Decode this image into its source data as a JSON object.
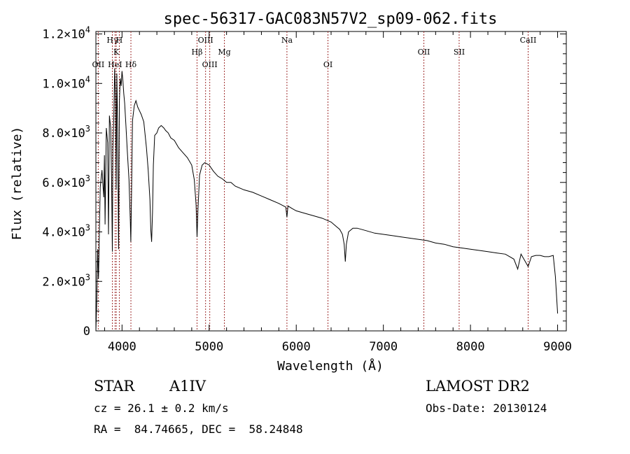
{
  "chart_data": {
    "type": "line",
    "title": "spec-56317-GAC083N57V2_sp09-062.fits",
    "xlabel": "Wavelength (Å)",
    "ylabel": "Flux (relative)",
    "xlim": [
      3700,
      9100
    ],
    "ylim": [
      0,
      12100
    ],
    "x_ticks": [
      4000,
      5000,
      6000,
      7000,
      8000,
      9000
    ],
    "x_tick_labels": [
      "4000",
      "5000",
      "6000",
      "7000",
      "8000",
      "9000"
    ],
    "y_ticks": [
      0,
      2000,
      4000,
      6000,
      8000,
      10000,
      12000
    ],
    "y_tick_labels": [
      {
        "mant": "0",
        "exp": ""
      },
      {
        "mant": "2.0×10",
        "exp": "3"
      },
      {
        "mant": "4.0×10",
        "exp": "3"
      },
      {
        "mant": "6.0×10",
        "exp": "3"
      },
      {
        "mant": "8.0×10",
        "exp": "3"
      },
      {
        "mant": "1.0×10",
        "exp": "4"
      },
      {
        "mant": "1.2×10",
        "exp": "4"
      }
    ],
    "grid": false,
    "line_color": "#000000",
    "marker_color": "#a03030",
    "series": [
      {
        "x": [
          3700,
          3710,
          3720,
          3730,
          3750,
          3770,
          3790,
          3798,
          3805,
          3820,
          3835,
          3845,
          3855,
          3870,
          3880,
          3889,
          3895,
          3905,
          3915,
          3925,
          3933,
          3940,
          3950,
          3960,
          3970,
          3980,
          3990,
          4000,
          4010,
          4020,
          4030,
          4045,
          4060,
          4080,
          4095,
          4101,
          4108,
          4120,
          4140,
          4160,
          4180,
          4200,
          4220,
          4250,
          4280,
          4300,
          4320,
          4330,
          4340,
          4350,
          4360,
          4375,
          4400,
          4420,
          4450,
          4480,
          4500,
          4530,
          4560,
          4600,
          4650,
          4700,
          4750,
          4800,
          4830,
          4850,
          4861,
          4872,
          4890,
          4920,
          4950,
          5000,
          5050,
          5100,
          5150,
          5200,
          5250,
          5300,
          5400,
          5500,
          5600,
          5700,
          5800,
          5880,
          5893,
          5905,
          5950,
          6000,
          6100,
          6200,
          6300,
          6400,
          6450,
          6500,
          6530,
          6550,
          6563,
          6575,
          6600,
          6650,
          6700,
          6800,
          6900,
          7000,
          7100,
          7200,
          7300,
          7400,
          7500,
          7600,
          7700,
          7800,
          7900,
          8000,
          8100,
          8200,
          8300,
          8400,
          8498,
          8542,
          8580,
          8662,
          8700,
          8750,
          8800,
          8850,
          8900,
          8950,
          8975,
          9000
        ],
        "y": [
          0,
          1200,
          3300,
          2100,
          5800,
          6500,
          5400,
          7100,
          4300,
          8200,
          7600,
          3900,
          8700,
          8200,
          6100,
          3200,
          7400,
          8500,
          10600,
          9400,
          5700,
          10400,
          8200,
          3300,
          9300,
          10200,
          9900,
          10500,
          10100,
          9600,
          9200,
          8300,
          7300,
          6100,
          4400,
          3600,
          5300,
          8500,
          9100,
          9300,
          9050,
          8900,
          8750,
          8450,
          7400,
          6500,
          5300,
          4100,
          3600,
          4800,
          6700,
          7900,
          8000,
          8200,
          8300,
          8200,
          8100,
          8000,
          7800,
          7700,
          7400,
          7200,
          7000,
          6700,
          6100,
          5100,
          3800,
          4900,
          6300,
          6700,
          6800,
          6700,
          6450,
          6250,
          6150,
          6000,
          6000,
          5850,
          5700,
          5600,
          5450,
          5300,
          5150,
          5000,
          4600,
          5050,
          4950,
          4850,
          4750,
          4650,
          4550,
          4400,
          4250,
          4100,
          3900,
          3500,
          2800,
          3500,
          4000,
          4150,
          4150,
          4050,
          3950,
          3900,
          3850,
          3800,
          3750,
          3700,
          3650,
          3550,
          3500,
          3400,
          3350,
          3300,
          3250,
          3200,
          3150,
          3100,
          2900,
          2500,
          3100,
          2600,
          3000,
          3050,
          3050,
          3000,
          3000,
          3050,
          2200,
          700
        ]
      }
    ],
    "markers": [
      {
        "wl": 3727,
        "label": "OII",
        "row": 3
      },
      {
        "wl": 3889,
        "label": "Hγ",
        "row": 1
      },
      {
        "wl": 3920,
        "label": "HeI",
        "row": 3
      },
      {
        "wl": 3934,
        "label": "K",
        "row": 2
      },
      {
        "wl": 3969,
        "label": "H",
        "row": 1
      },
      {
        "wl": 4102,
        "label": "Hδ",
        "row": 3
      },
      {
        "wl": 4861,
        "label": "Hβ",
        "row": 2
      },
      {
        "wl": 4959,
        "label": "OIII",
        "row": 1
      },
      {
        "wl": 5007,
        "label": "OIII",
        "row": 3
      },
      {
        "wl": 5175,
        "label": "Mg",
        "row": 2
      },
      {
        "wl": 5893,
        "label": "Na",
        "row": 1
      },
      {
        "wl": 6364,
        "label": "OI",
        "row": 3
      },
      {
        "wl": 7465,
        "label": "OII",
        "row": 2
      },
      {
        "wl": 7870,
        "label": "SII",
        "row": 2
      },
      {
        "wl": 8662,
        "label": "CaII",
        "row": 1
      }
    ]
  },
  "info": {
    "object_class": "STAR",
    "subclass": "A1IV",
    "redshift": "cz = 26.1 ± 0.2 km/s",
    "coords": "RA =  84.74665, DEC =  58.24848",
    "survey": "LAMOST DR2",
    "obs_date": "Obs-Date: 20130124"
  }
}
